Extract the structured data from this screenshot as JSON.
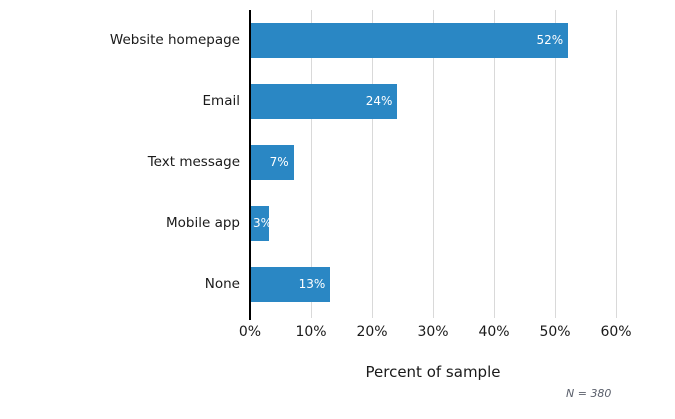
{
  "chart_data": {
    "type": "bar",
    "orientation": "horizontal",
    "title": "",
    "categories": [
      "Website homepage",
      "Email",
      "Text message",
      "Mobile app",
      "None"
    ],
    "values": [
      52,
      24,
      7,
      3,
      13
    ],
    "value_labels": [
      "52%",
      "24%",
      "7%",
      "3%",
      "13%"
    ],
    "xlabel": "Percent of sample",
    "ylabel": "",
    "xlim": [
      0,
      60
    ],
    "x_tick_values": [
      0,
      10,
      20,
      30,
      40,
      50,
      60
    ],
    "x_tick_labels": [
      "0%",
      "10%",
      "20%",
      "30%",
      "40%",
      "50%",
      "60%"
    ],
    "grid": "vertical",
    "legend": "none",
    "note": "N = 380",
    "colors": {
      "bar": "#2a87c4",
      "gridline": "#d9d9d9",
      "axis_line": "#000000",
      "text": "#1a1a1a",
      "value_label": "#ffffff",
      "note": "#5a5f6b"
    }
  }
}
